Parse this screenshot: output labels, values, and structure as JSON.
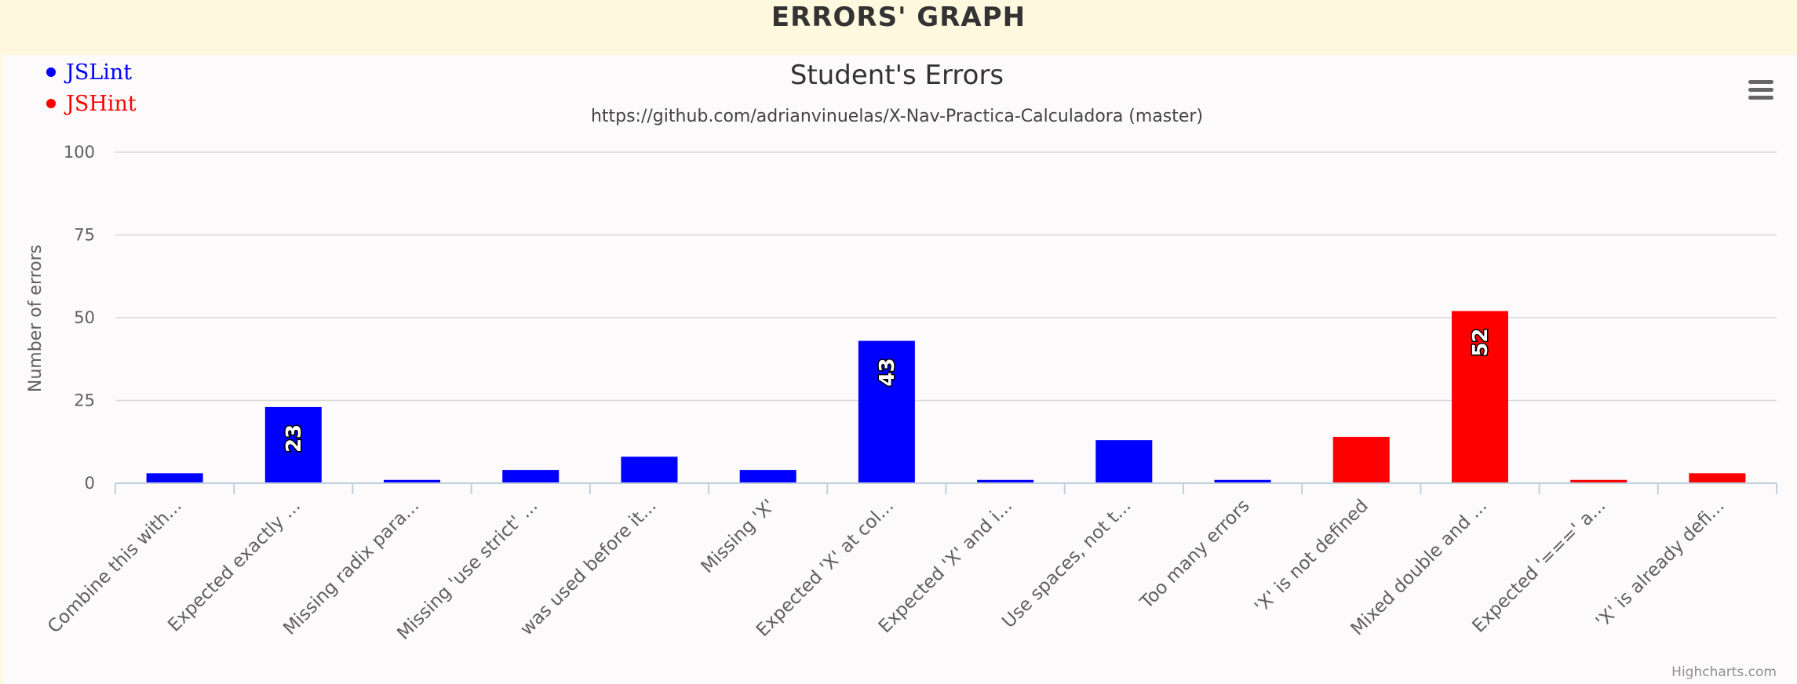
{
  "page": {
    "title": "ERRORS' GRAPH"
  },
  "menu": {
    "icon": "hamburger-menu-icon"
  },
  "credits": "Highcharts.com",
  "colors": {
    "jslint": "#0000ff",
    "jshint": "#ff0000",
    "grid": "#d8d8d8",
    "axis": "#c0d0e0",
    "text": "#333333",
    "label": "#606060"
  },
  "chart_data": {
    "type": "bar",
    "title": "Student's Errors",
    "subtitle": "https://github.com/adrianvinuelas/X-Nav-Practica-Calculadora (master)",
    "ylabel": "Number of errors",
    "xlabel": "",
    "ylim": [
      0,
      100
    ],
    "yticks": [
      0,
      25,
      50,
      75,
      100
    ],
    "grid": true,
    "legend_position": "top-left",
    "legend": [
      {
        "name": "JSLint",
        "color": "#0000ff"
      },
      {
        "name": "JSHint",
        "color": "#ff0000"
      }
    ],
    "categories": [
      "Combine this with...",
      "Expected exactly ...",
      "Missing radix para...",
      "Missing 'use strict' ...",
      "was used before it...",
      "Missing 'X'",
      "Expected 'X' at col...",
      "Expected 'X' and i...",
      "Use spaces, not t...",
      "Too many errors",
      "'X' is not defined",
      "Mixed double and ...",
      "Expected '===' a...",
      "'X' is already defi..."
    ],
    "values": [
      3,
      23,
      1,
      4,
      8,
      4,
      43,
      1,
      13,
      1,
      14,
      52,
      1,
      3
    ],
    "series_of_bar": [
      "JSLint",
      "JSLint",
      "JSLint",
      "JSLint",
      "JSLint",
      "JSLint",
      "JSLint",
      "JSLint",
      "JSLint",
      "JSLint",
      "JSHint",
      "JSHint",
      "JSHint",
      "JSHint"
    ],
    "data_labels": [
      null,
      "23",
      null,
      null,
      null,
      null,
      "43",
      null,
      null,
      null,
      null,
      "52",
      null,
      null
    ]
  }
}
